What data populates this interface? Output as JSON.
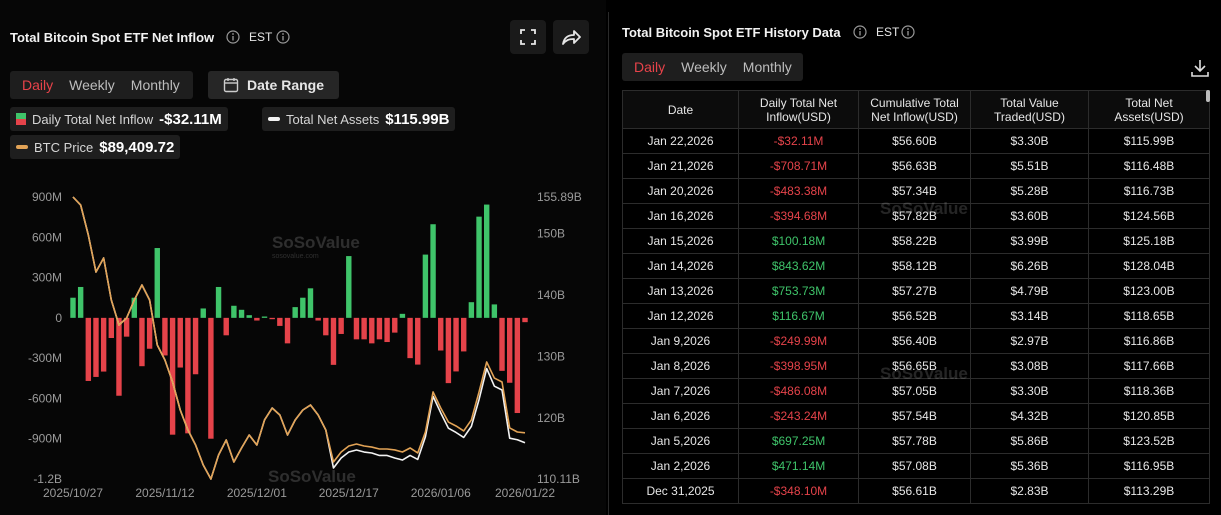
{
  "left_panel": {
    "title": "Total Bitcoin Spot ETF Net Inflow",
    "timezone": "EST",
    "tabs": [
      "Daily",
      "Weekly",
      "Monthly"
    ],
    "active_tab": "Daily",
    "date_range": "Date Range"
  },
  "chart_data": {
    "type": "bar",
    "categories": [
      "2025/10/27",
      null,
      null,
      null,
      null,
      null,
      null,
      null,
      null,
      null,
      null,
      null,
      "2025/11/12",
      null,
      null,
      null,
      null,
      null,
      null,
      null,
      null,
      null,
      null,
      null,
      "2025/12/01",
      null,
      null,
      null,
      null,
      null,
      null,
      null,
      null,
      null,
      null,
      null,
      "2025/12/17",
      null,
      null,
      null,
      null,
      null,
      null,
      null,
      null,
      null,
      null,
      null,
      "2026/01/06",
      null,
      null,
      null,
      null,
      null,
      null,
      null,
      null,
      null,
      null,
      "2026/01/22"
    ],
    "series": [
      {
        "name": "Daily Total Net Inflow",
        "type": "bar",
        "axis": "y",
        "legend_value": "-$32.11M",
        "colors": {
          "positive": "#3fc46a",
          "negative": "#e5434a"
        },
        "values": [
          150,
          230,
          -470,
          -440,
          -400,
          -150,
          -580,
          -140,
          150,
          -360,
          -230,
          520,
          -280,
          -870,
          -370,
          -860,
          -420,
          70,
          -900,
          230,
          -130,
          90,
          60,
          20,
          -20,
          10,
          -10,
          -60,
          -190,
          80,
          150,
          220,
          -20,
          -130,
          -350,
          -120,
          460,
          -160,
          -160,
          -190,
          -160,
          -180,
          -110,
          30,
          -300,
          -348.1,
          471.14,
          697.25,
          -243.24,
          -486.08,
          -398.95,
          -249.99,
          116.67,
          753.73,
          843.62,
          100.18,
          -394.68,
          -483.38,
          -708.71,
          -32.11
        ]
      },
      {
        "name": "Total Net Assets",
        "type": "line",
        "axis": "y2",
        "legend_value": "$115.99B",
        "color": "#f2f2f2",
        "values": [
          155.89,
          154.59,
          149.72,
          143.71,
          145.99,
          139.17,
          135.11,
          136.25,
          139.17,
          141.6,
          139.17,
          131.86,
          129.43,
          125.86,
          121.31,
          118.06,
          115.63,
          112.38,
          110.11,
          114.01,
          116.44,
          112.87,
          115.14,
          117.25,
          115.63,
          119.69,
          121.64,
          120.5,
          117.25,
          119.69,
          121.31,
          122.12,
          120.5,
          118.06,
          111.9,
          113.52,
          114.49,
          114.82,
          114.49,
          114.33,
          113.93,
          113.93,
          113.52,
          113.19,
          113.93,
          113.29,
          116.95,
          123.52,
          120.85,
          118.36,
          117.66,
          116.86,
          118.65,
          123.0,
          128.04,
          125.18,
          124.56,
          116.73,
          116.48,
          115.99
        ]
      },
      {
        "name": "BTC Price",
        "type": "line",
        "axis": "y3",
        "legend_value": "$89,409.72",
        "color": "#e2a356",
        "values": [
          114500,
          113650,
          110460,
          106520,
          108010,
          103540,
          100880,
          101630,
          103540,
          105140,
          103540,
          98750,
          97160,
          94820,
          91840,
          89710,
          88120,
          85990,
          84500,
          87050,
          88650,
          86310,
          87800,
          89180,
          88120,
          90780,
          92050,
          91310,
          89180,
          90780,
          91840,
          92370,
          91310,
          89710,
          86310,
          87370,
          88010,
          88220,
          88010,
          87900,
          87690,
          87690,
          87590,
          87370,
          87800,
          87270,
          89500,
          93760,
          92050,
          90560,
          90140,
          89610,
          90780,
          93760,
          96950,
          95240,
          94820,
          89930,
          89500,
          89409.72
        ]
      }
    ],
    "ylim": [
      -1200,
      900
    ],
    "yticks": [
      {
        "value": 900,
        "label": "900M"
      },
      {
        "value": 600,
        "label": "600M"
      },
      {
        "value": 300,
        "label": "300M"
      },
      0,
      {
        "value": -300,
        "label": "-300M"
      },
      {
        "value": -600,
        "label": "-600M"
      },
      {
        "value": -900,
        "label": "-900M"
      },
      {
        "value": -1200,
        "label": "-1.2B"
      }
    ],
    "y2lim": [
      110.11,
      155.89
    ],
    "y2ticks": [
      {
        "value": 155.89,
        "label": "155.89B"
      },
      {
        "value": 150,
        "label": "150B"
      },
      {
        "value": 140,
        "label": "140B"
      },
      {
        "value": 130,
        "label": "130B"
      },
      {
        "value": 120,
        "label": "120B"
      },
      {
        "value": 110.11,
        "label": "110.11B"
      }
    ],
    "y3lim": [
      84500,
      114500
    ],
    "grid": false,
    "watermark": "SoSoValue",
    "watermark_url": "sosovalue.com"
  },
  "right_panel": {
    "title": "Total Bitcoin Spot ETF History Data",
    "timezone": "EST",
    "tabs": [
      "Daily",
      "Weekly",
      "Monthly"
    ],
    "active_tab": "Daily",
    "table": {
      "headers": [
        "Date",
        "Daily Total Net Inflow(USD)",
        "Cumulative Total Net Inflow(USD)",
        "Total Value Traded(USD)",
        "Total Net Assets(USD)"
      ],
      "rows": [
        [
          "Jan 22,2026",
          "-$32.11M",
          "$56.60B",
          "$3.30B",
          "$115.99B"
        ],
        [
          "Jan 21,2026",
          "-$708.71M",
          "$56.63B",
          "$5.51B",
          "$116.48B"
        ],
        [
          "Jan 20,2026",
          "-$483.38M",
          "$57.34B",
          "$5.28B",
          "$116.73B"
        ],
        [
          "Jan 16,2026",
          "-$394.68M",
          "$57.82B",
          "$3.60B",
          "$124.56B"
        ],
        [
          "Jan 15,2026",
          "$100.18M",
          "$58.22B",
          "$3.99B",
          "$125.18B"
        ],
        [
          "Jan 14,2026",
          "$843.62M",
          "$58.12B",
          "$6.26B",
          "$128.04B"
        ],
        [
          "Jan 13,2026",
          "$753.73M",
          "$57.27B",
          "$4.79B",
          "$123.00B"
        ],
        [
          "Jan 12,2026",
          "$116.67M",
          "$56.52B",
          "$3.14B",
          "$118.65B"
        ],
        [
          "Jan 9,2026",
          "-$249.99M",
          "$56.40B",
          "$2.97B",
          "$116.86B"
        ],
        [
          "Jan 8,2026",
          "-$398.95M",
          "$56.65B",
          "$3.08B",
          "$117.66B"
        ],
        [
          "Jan 7,2026",
          "-$486.08M",
          "$57.05B",
          "$3.30B",
          "$118.36B"
        ],
        [
          "Jan 6,2026",
          "-$243.24M",
          "$57.54B",
          "$4.32B",
          "$120.85B"
        ],
        [
          "Jan 5,2026",
          "$697.25M",
          "$57.78B",
          "$5.86B",
          "$123.52B"
        ],
        [
          "Jan 2,2026",
          "$471.14M",
          "$57.08B",
          "$5.36B",
          "$116.95B"
        ],
        [
          "Dec 31,2025",
          "-$348.10M",
          "$56.61B",
          "$2.83B",
          "$113.29B"
        ]
      ]
    }
  }
}
